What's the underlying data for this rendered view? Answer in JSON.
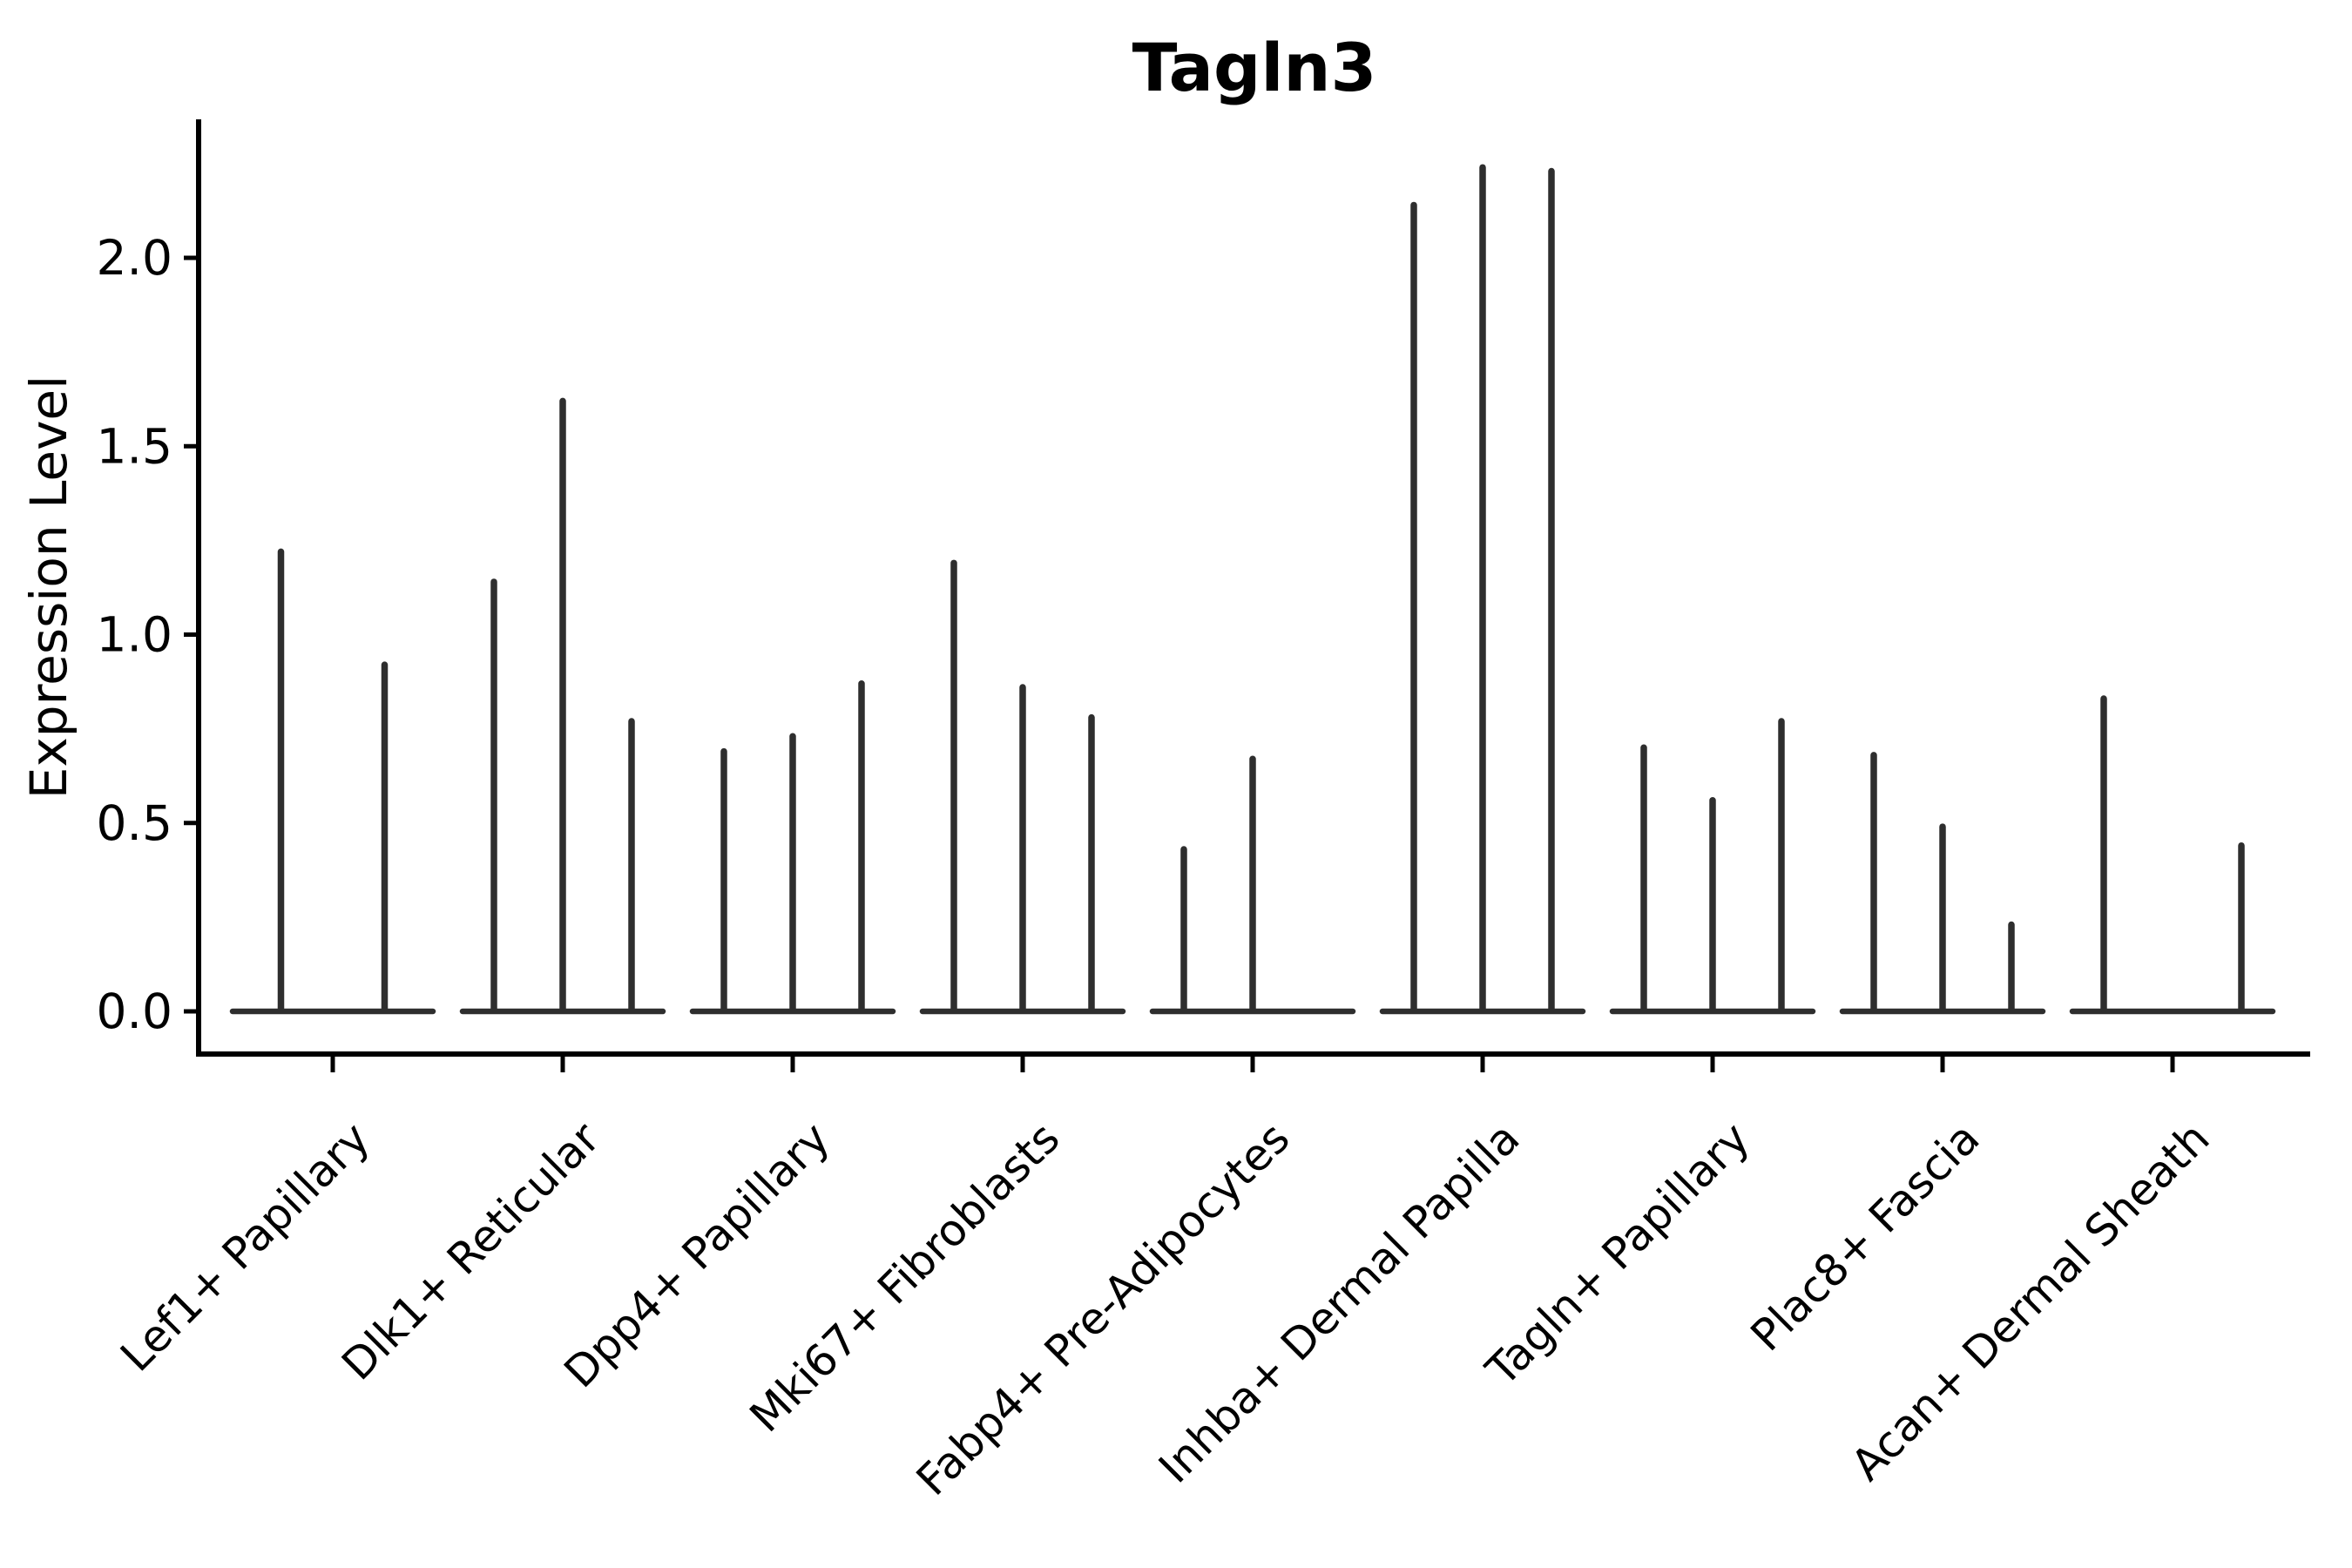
{
  "chart_data": {
    "type": "violin",
    "title": "Tagln3",
    "ylabel": "Expression Level",
    "xlabel": "",
    "yticks": [
      0.0,
      0.5,
      1.0,
      1.5,
      2.0
    ],
    "ylim": [
      -0.12,
      2.37
    ],
    "grid": false,
    "legend": "none",
    "note": "Each violin is collapsed to a thin spike; values are the max expression height of each violin. 0 means an all-zero (flat) violin drawn only as a baseline segment.",
    "categories": [
      "Lef1+ Papillary",
      "Dlk1+ Reticular",
      "Dpp4+ Papillary",
      "Mki67+ Fibroblasts",
      "Fabp4+ Pre-Adipocytes",
      "Inhba+ Dermal Papilla",
      "Tagln+ Papillary",
      "Plac8+ Fascia",
      "Acan+ Dermal Sheath"
    ],
    "series": [
      {
        "category": "Lef1+ Papillary",
        "violin_max": [
          1.22,
          0.92
        ]
      },
      {
        "category": "Dlk1+ Reticular",
        "violin_max": [
          1.14,
          1.62,
          0.77
        ]
      },
      {
        "category": "Dpp4+ Papillary",
        "violin_max": [
          0.69,
          0.73,
          0.87
        ]
      },
      {
        "category": "Mki67+ Fibroblasts",
        "violin_max": [
          1.19,
          0.86,
          0.78
        ]
      },
      {
        "category": "Fabp4+ Pre-Adipocytes",
        "violin_max": [
          0.43,
          0.67,
          0
        ]
      },
      {
        "category": "Inhba+ Dermal Papilla",
        "violin_max": [
          2.14,
          2.24,
          2.23
        ]
      },
      {
        "category": "Tagln+ Papillary",
        "violin_max": [
          0.7,
          0.56,
          0.77
        ]
      },
      {
        "category": "Plac8+ Fascia",
        "violin_max": [
          0.68,
          0.49,
          0.23
        ]
      },
      {
        "category": "Acan+ Dermal Sheath",
        "violin_max": [
          0.83,
          0,
          0.44
        ]
      }
    ],
    "colors": {
      "violin": "#2e2e2e",
      "axis": "#000000",
      "text": "#000000",
      "background": "#ffffff"
    }
  }
}
